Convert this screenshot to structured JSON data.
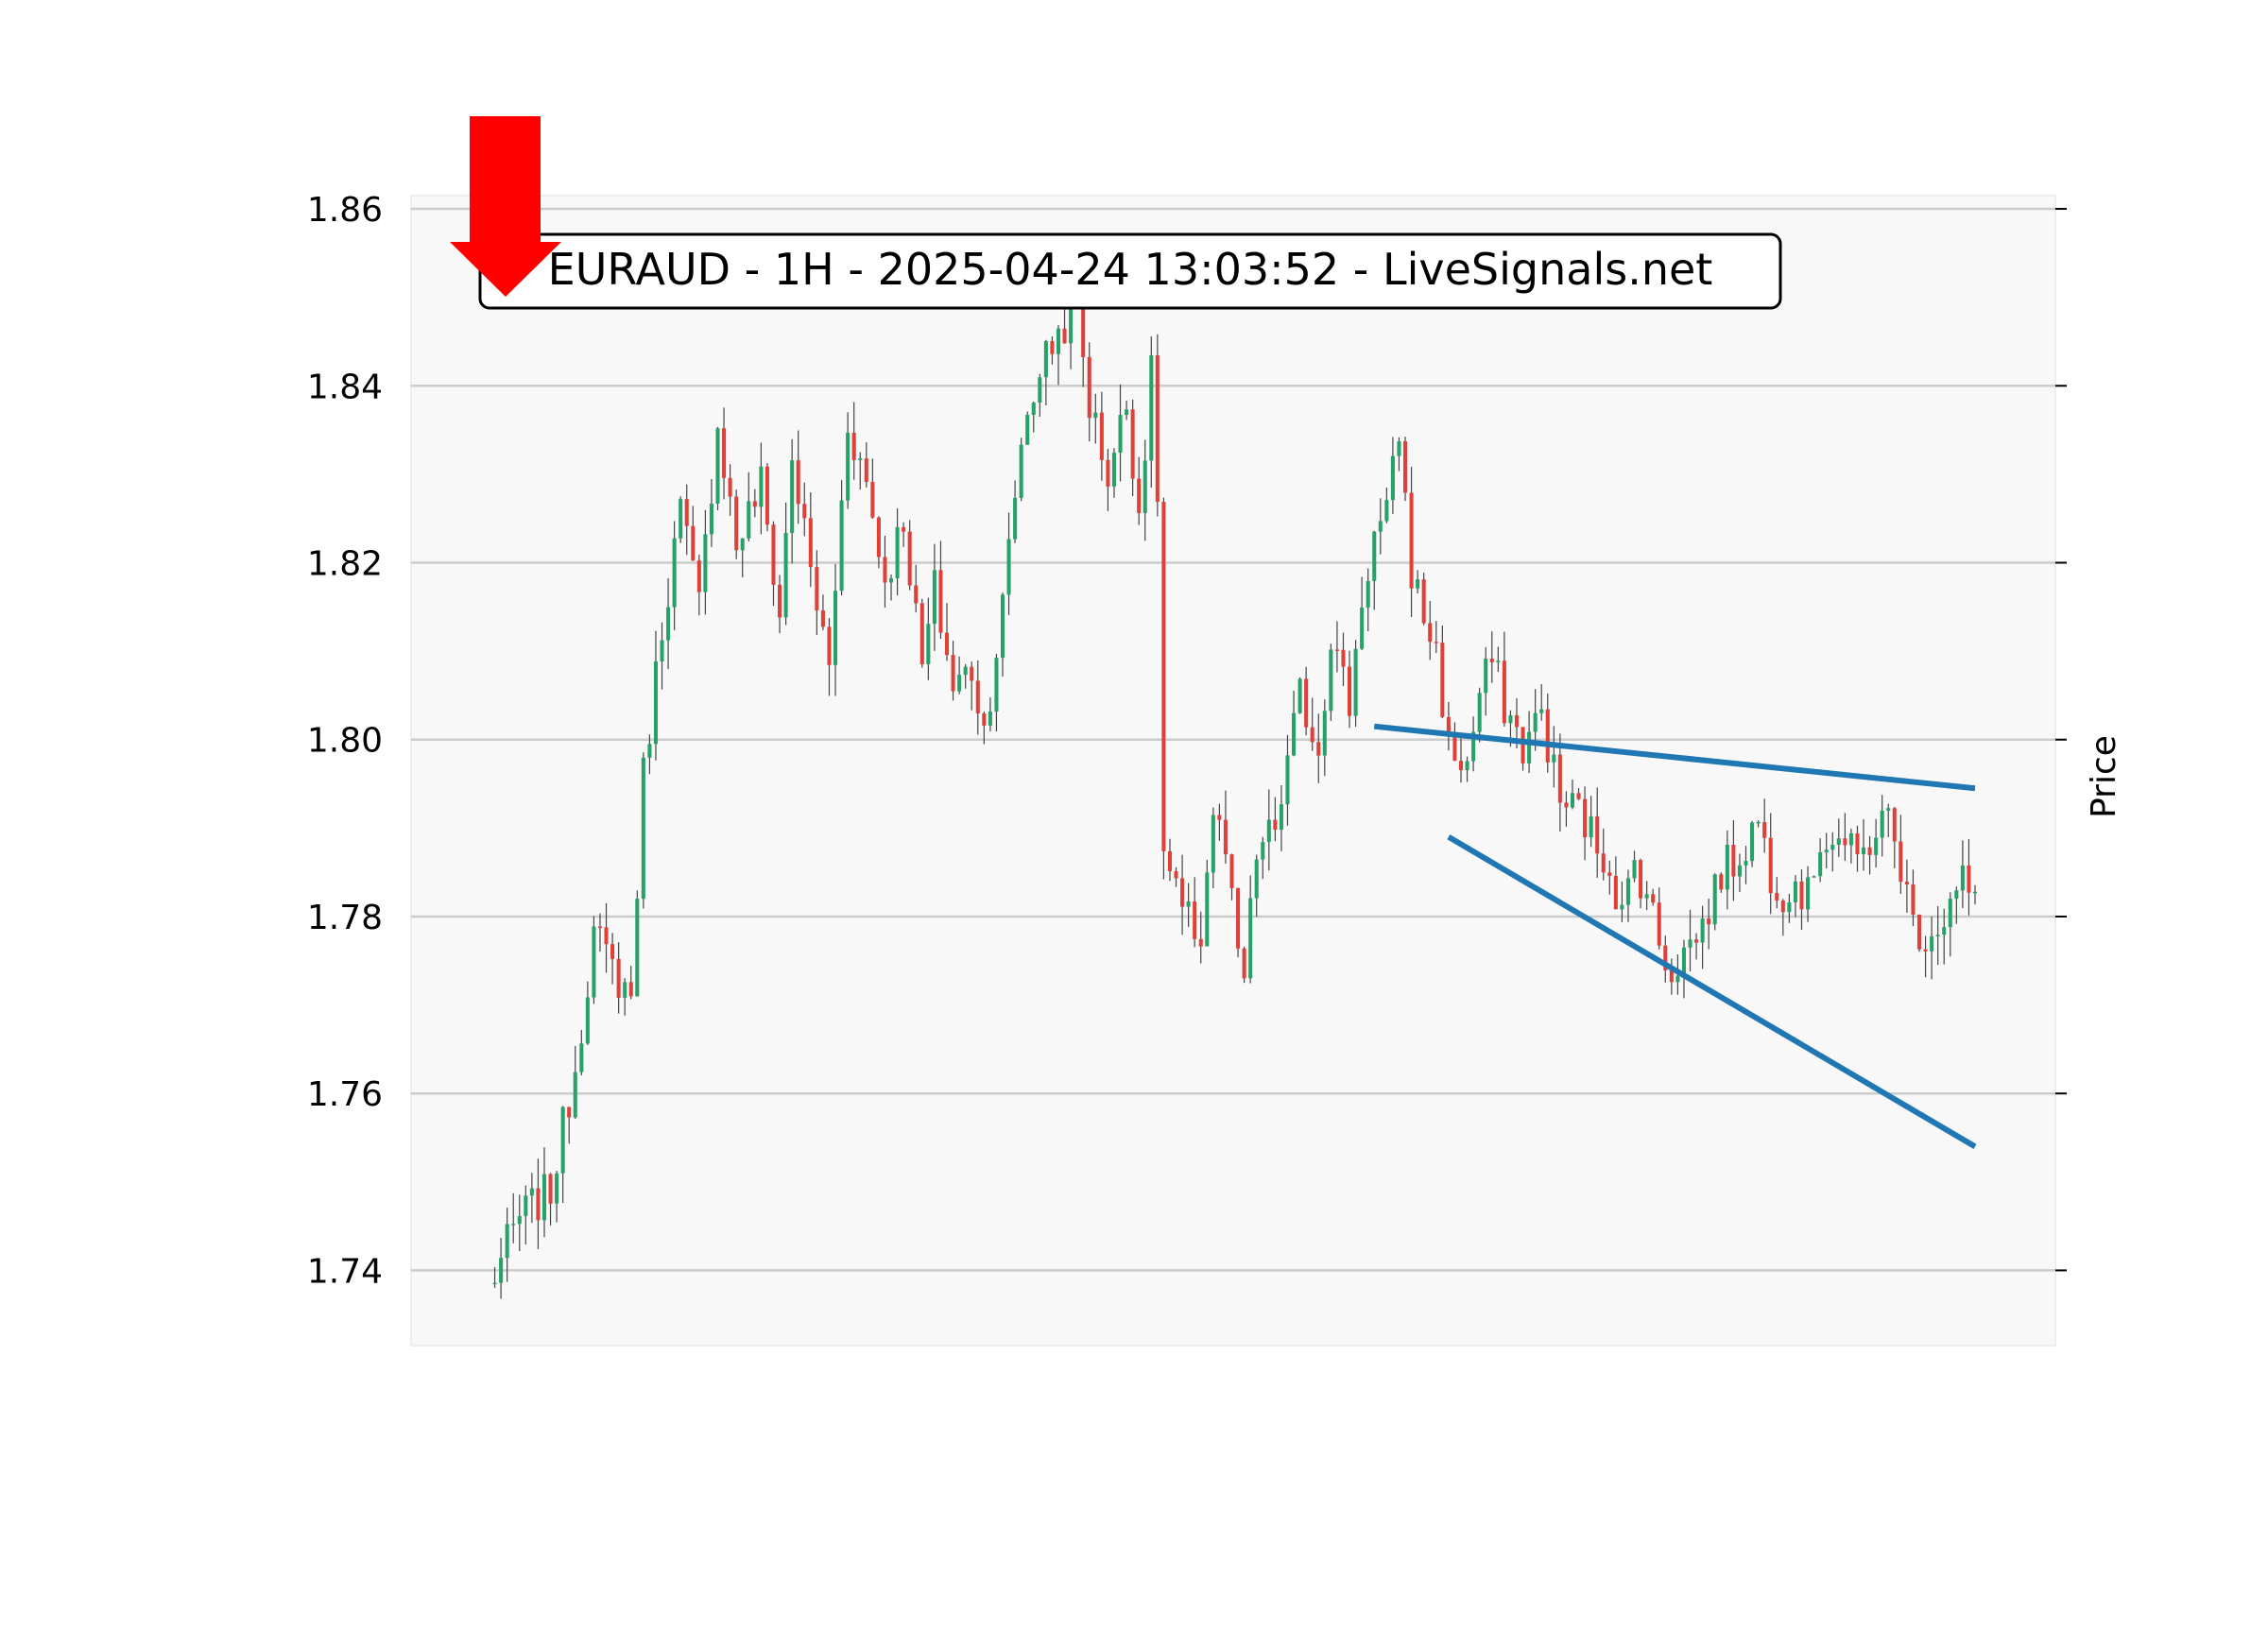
{
  "chart_data": {
    "type": "candlestick",
    "title": "EURAUD - 1H - 2025-04-24 13:03:52 - LiveSignals.net",
    "ylabel": "Price",
    "xlabel": "",
    "ylim": [
      1.7315,
      1.8615
    ],
    "yticks": [
      "1.74",
      "1.76",
      "1.78",
      "1.80",
      "1.82",
      "1.84",
      "1.86"
    ],
    "ytick_values": [
      1.74,
      1.76,
      1.78,
      1.8,
      1.82,
      1.84,
      1.86
    ],
    "grid": true,
    "candle_count": 240,
    "close_path": [
      [
        0,
        1.738
      ],
      [
        5,
        1.746
      ],
      [
        10,
        1.749
      ],
      [
        14,
        1.763
      ],
      [
        17,
        1.778
      ],
      [
        20,
        1.774
      ],
      [
        23,
        1.771
      ],
      [
        25,
        1.796
      ],
      [
        28,
        1.813
      ],
      [
        31,
        1.826
      ],
      [
        34,
        1.815
      ],
      [
        37,
        1.836
      ],
      [
        40,
        1.822
      ],
      [
        44,
        1.829
      ],
      [
        47,
        1.814
      ],
      [
        49,
        1.832
      ],
      [
        52,
        1.819
      ],
      [
        55,
        1.808
      ],
      [
        58,
        1.836
      ],
      [
        61,
        1.829
      ],
      [
        64,
        1.818
      ],
      [
        67,
        1.825
      ],
      [
        70,
        1.808
      ],
      [
        72,
        1.817
      ],
      [
        75,
        1.806
      ],
      [
        78,
        1.808
      ],
      [
        80,
        1.801
      ],
      [
        83,
        1.815
      ],
      [
        86,
        1.834
      ],
      [
        89,
        1.842
      ],
      [
        92,
        1.846
      ],
      [
        95,
        1.849
      ],
      [
        97,
        1.838
      ],
      [
        100,
        1.83
      ],
      [
        103,
        1.838
      ],
      [
        105,
        1.826
      ],
      [
        107,
        1.841
      ],
      [
        108,
        1.828
      ],
      [
        109,
        1.787
      ],
      [
        112,
        1.78
      ],
      [
        115,
        1.778
      ],
      [
        117,
        1.792
      ],
      [
        119,
        1.787
      ],
      [
        121,
        1.775
      ],
      [
        122,
        1.773
      ],
      [
        124,
        1.787
      ],
      [
        127,
        1.79
      ],
      [
        129,
        1.797
      ],
      [
        131,
        1.805
      ],
      [
        134,
        1.799
      ],
      [
        136,
        1.812
      ],
      [
        139,
        1.804
      ],
      [
        141,
        1.816
      ],
      [
        143,
        1.823
      ],
      [
        145,
        1.825
      ],
      [
        147,
        1.835
      ],
      [
        149,
        1.819
      ],
      [
        151,
        1.814
      ],
      [
        153,
        1.81
      ],
      [
        155,
        1.799
      ],
      [
        158,
        1.797
      ],
      [
        160,
        1.805
      ],
      [
        162,
        1.809
      ],
      [
        164,
        1.804
      ],
      [
        167,
        1.799
      ],
      [
        170,
        1.803
      ],
      [
        173,
        1.793
      ],
      [
        176,
        1.792
      ],
      [
        179,
        1.788
      ],
      [
        181,
        1.786
      ],
      [
        183,
        1.78
      ],
      [
        185,
        1.786
      ],
      [
        187,
        1.783
      ],
      [
        189,
        1.777
      ],
      [
        191,
        1.774
      ],
      [
        193,
        1.776
      ],
      [
        196,
        1.779
      ],
      [
        199,
        1.785
      ],
      [
        202,
        1.787
      ],
      [
        205,
        1.791
      ],
      [
        207,
        1.785
      ],
      [
        209,
        1.783
      ],
      [
        211,
        1.784
      ],
      [
        213,
        1.782
      ],
      [
        215,
        1.789
      ],
      [
        218,
        1.789
      ],
      [
        221,
        1.786
      ],
      [
        224,
        1.79
      ],
      [
        226,
        1.791
      ],
      [
        228,
        1.786
      ],
      [
        230,
        1.779
      ],
      [
        232,
        1.778
      ],
      [
        235,
        1.78
      ],
      [
        238,
        1.784
      ],
      [
        240,
        1.781
      ]
    ],
    "trendlines": [
      {
        "from": [
          143,
          1.8015
        ],
        "to": [
          240,
          1.7945
        ]
      },
      {
        "from": [
          155,
          1.789
        ],
        "to": [
          240,
          1.754
        ]
      }
    ],
    "annotation": {
      "type": "down-arrow",
      "color": "#ff0000"
    },
    "colors": {
      "up": "#26a269",
      "down": "#e0403a",
      "wick": "#444444",
      "grid": "#cccccc",
      "plot_bg": "#f8f8f8",
      "trendline": "#1f77b4",
      "arrow": "#ff0000"
    }
  }
}
